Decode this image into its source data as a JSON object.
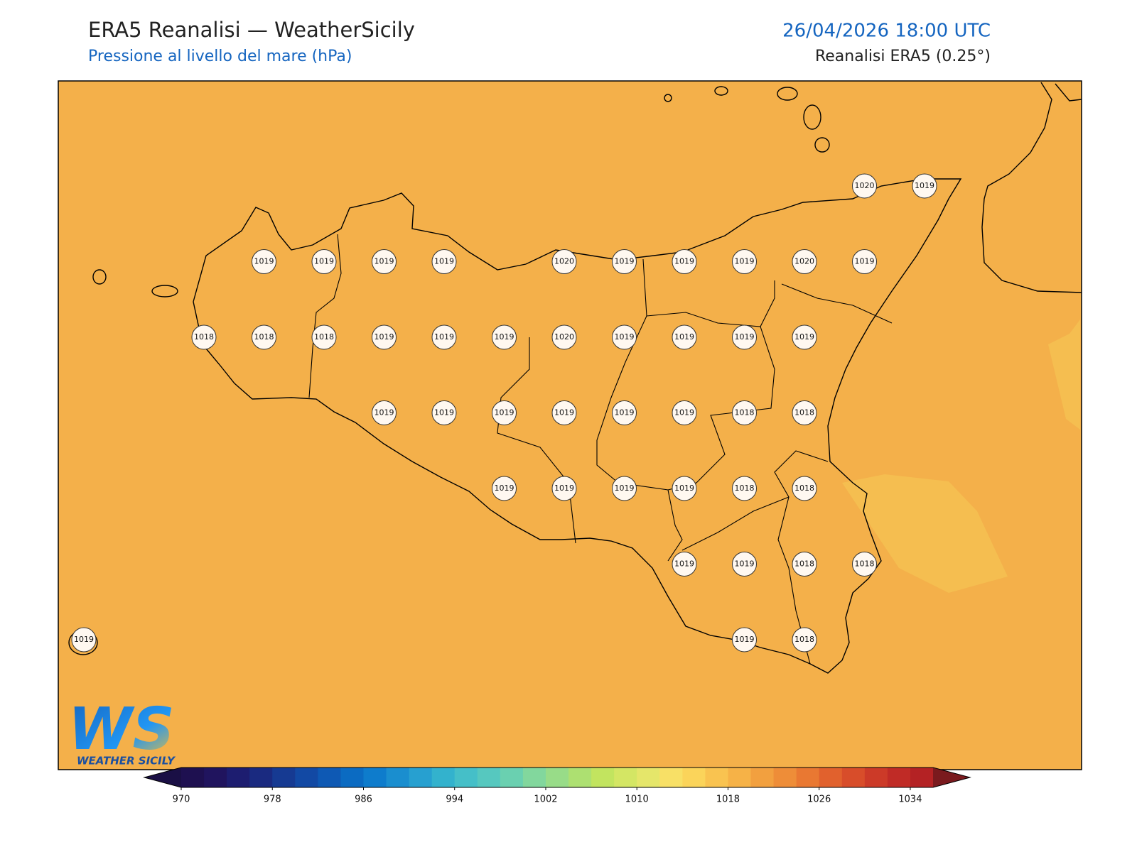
{
  "header": {
    "title": "ERA5 Reanalisi — WeatherSicily",
    "subtitle": "Pressione al livello del mare (hPa)",
    "datetime": "26/04/2026 18:00 UTC",
    "source": "Reanalisi ERA5 (0.25°)"
  },
  "map": {
    "fill": "#f4b04a",
    "highlight": "#f5be50",
    "pressure_labels": [
      [
        1020,
        1019
      ],
      [
        1019,
        1019,
        1019,
        1019,
        1020,
        1019,
        1019,
        1019,
        1020,
        1019
      ],
      [
        1018,
        1018,
        1018,
        1019,
        1019,
        1019,
        1020,
        1019,
        1019,
        1019,
        1019
      ],
      [
        1019,
        1019,
        1019,
        1019,
        1019,
        1019,
        1018,
        1018
      ],
      [
        1019,
        1019,
        1019,
        1019,
        1018,
        1018
      ],
      [
        1019,
        1019,
        1018,
        1018
      ],
      [
        1019,
        1019,
        1018
      ]
    ]
  },
  "logo": {
    "letters": "WS",
    "text": "WEATHER SICILY"
  },
  "colorbar": {
    "clim": [
      970,
      1036
    ],
    "ticks": [
      970,
      978,
      986,
      994,
      1002,
      1010,
      1018,
      1026,
      1034
    ],
    "under": "#1a0f45",
    "over": "#7a1a1e",
    "colors": [
      "#1e1050",
      "#20145e",
      "#1d1d70",
      "#1a2a80",
      "#163a92",
      "#1249a4",
      "#0e59b4",
      "#0b6bc2",
      "#0e7ccc",
      "#1a8ecf",
      "#27a0d0",
      "#33b2cd",
      "#45bfc8",
      "#56c8bf",
      "#6ad0b0",
      "#82d79d",
      "#98dc88",
      "#ade071",
      "#c2e45f",
      "#d4e664",
      "#e5e66a",
      "#f8e066",
      "#fbd45a",
      "#f9c350",
      "#f6b247",
      "#f2a03f",
      "#ee8d38",
      "#e97832",
      "#e1612d",
      "#d84d2a",
      "#cc3a28",
      "#c02b26",
      "#b42224"
    ]
  }
}
